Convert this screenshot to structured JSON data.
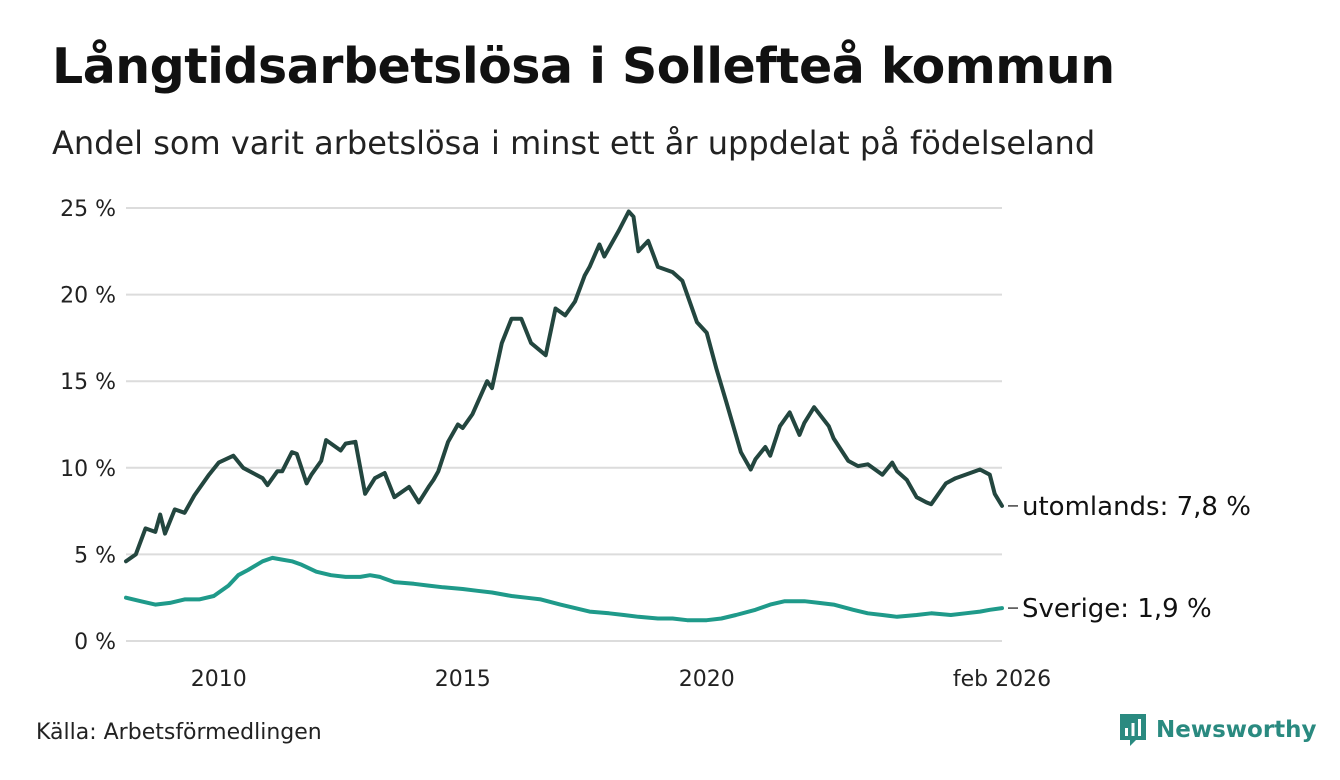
{
  "title": "Långtidsarbetslösa i Sollefteå kommun",
  "subtitle": "Andel som varit arbetslösa i minst ett år uppdelat på födelseland",
  "source": "Källa: Arbetsförmedlingen",
  "brand": "Newsworthy",
  "colors": {
    "utomlands": "#23463f",
    "sverige": "#1f9a8a",
    "grid": "#dcdcdc",
    "brand": "#2a8a80"
  },
  "chart_data": {
    "type": "line",
    "title": "Långtidsarbetslösa i Sollefteå kommun",
    "xlabel": "",
    "ylabel": "",
    "ylim": [
      0,
      25
    ],
    "xlim": [
      2008.1,
      2026.05
    ],
    "y_ticks": [
      0,
      5,
      10,
      15,
      20,
      25
    ],
    "y_tick_labels": [
      "0 %",
      "5 %",
      "10 %",
      "15 %",
      "20 %",
      "25 %"
    ],
    "x_ticks": [
      2010,
      2015,
      2020,
      2026.05
    ],
    "x_tick_labels": [
      "2010",
      "2015",
      "2020",
      "feb 2026"
    ],
    "series": [
      {
        "name": "utomlands",
        "end_label": "utomlands: 7,8 %",
        "x": [
          2008.1,
          2008.3,
          2008.5,
          2008.7,
          2008.8,
          2008.9,
          2009.1,
          2009.3,
          2009.5,
          2009.8,
          2010.0,
          2010.3,
          2010.5,
          2010.9,
          2011.0,
          2011.2,
          2011.3,
          2011.5,
          2011.6,
          2011.8,
          2011.9,
          2012.1,
          2012.2,
          2012.5,
          2012.6,
          2012.8,
          2013.0,
          2013.2,
          2013.4,
          2013.6,
          2013.9,
          2014.1,
          2014.3,
          2014.4,
          2014.5,
          2014.7,
          2014.9,
          2015.0,
          2015.2,
          2015.5,
          2015.6,
          2015.8,
          2016.0,
          2016.2,
          2016.4,
          2016.7,
          2016.9,
          2017.1,
          2017.3,
          2017.5,
          2017.6,
          2017.8,
          2017.9,
          2018.2,
          2018.4,
          2018.5,
          2018.6,
          2018.8,
          2019.0,
          2019.3,
          2019.5,
          2019.8,
          2020.0,
          2020.2,
          2020.4,
          2020.7,
          2020.9,
          2021.0,
          2021.2,
          2021.3,
          2021.5,
          2021.7,
          2021.9,
          2022.0,
          2022.2,
          2022.5,
          2022.6,
          2022.9,
          2023.1,
          2023.3,
          2023.6,
          2023.8,
          2023.9,
          2024.1,
          2024.3,
          2024.5,
          2024.6,
          2024.9,
          2025.1,
          2025.4,
          2025.6,
          2025.8,
          2025.9,
          2026.05
        ],
        "values": [
          4.6,
          5.0,
          6.5,
          6.3,
          7.3,
          6.2,
          7.6,
          7.4,
          8.4,
          9.6,
          10.3,
          10.7,
          10.0,
          9.4,
          9.0,
          9.8,
          9.8,
          10.9,
          10.8,
          9.1,
          9.6,
          10.4,
          11.6,
          11.0,
          11.4,
          11.5,
          8.5,
          9.4,
          9.7,
          8.3,
          8.9,
          8.0,
          8.9,
          9.3,
          9.8,
          11.5,
          12.5,
          12.3,
          13.1,
          15.0,
          14.6,
          17.2,
          18.6,
          18.6,
          17.2,
          16.5,
          19.2,
          18.8,
          19.6,
          21.1,
          21.6,
          22.9,
          22.2,
          23.7,
          24.8,
          24.5,
          22.5,
          23.1,
          21.6,
          21.3,
          20.8,
          18.4,
          17.8,
          15.7,
          13.8,
          10.9,
          9.9,
          10.5,
          11.2,
          10.7,
          12.4,
          13.2,
          11.9,
          12.6,
          13.5,
          12.4,
          11.7,
          10.4,
          10.1,
          10.2,
          9.6,
          10.3,
          9.8,
          9.3,
          8.3,
          8.0,
          7.9,
          9.1,
          9.4,
          9.7,
          9.9,
          9.6,
          8.5,
          7.8
        ]
      },
      {
        "name": "Sverige",
        "end_label": "Sverige: 1,9 %",
        "x": [
          2008.1,
          2008.4,
          2008.7,
          2009.0,
          2009.3,
          2009.6,
          2009.9,
          2010.2,
          2010.4,
          2010.6,
          2010.9,
          2011.1,
          2011.3,
          2011.5,
          2011.7,
          2012.0,
          2012.3,
          2012.6,
          2012.9,
          2013.1,
          2013.3,
          2013.6,
          2014.0,
          2014.3,
          2014.6,
          2015.0,
          2015.3,
          2015.6,
          2016.0,
          2016.3,
          2016.6,
          2017.0,
          2017.3,
          2017.6,
          2018.0,
          2018.3,
          2018.6,
          2019.0,
          2019.3,
          2019.6,
          2020.0,
          2020.3,
          2020.6,
          2021.0,
          2021.3,
          2021.6,
          2022.0,
          2022.3,
          2022.6,
          2023.0,
          2023.3,
          2023.6,
          2023.9,
          2024.3,
          2024.6,
          2025.0,
          2025.3,
          2025.6,
          2025.8,
          2026.05
        ],
        "values": [
          2.5,
          2.3,
          2.1,
          2.2,
          2.4,
          2.4,
          2.6,
          3.2,
          3.8,
          4.1,
          4.6,
          4.8,
          4.7,
          4.6,
          4.4,
          4.0,
          3.8,
          3.7,
          3.7,
          3.8,
          3.7,
          3.4,
          3.3,
          3.2,
          3.1,
          3.0,
          2.9,
          2.8,
          2.6,
          2.5,
          2.4,
          2.1,
          1.9,
          1.7,
          1.6,
          1.5,
          1.4,
          1.3,
          1.3,
          1.2,
          1.2,
          1.3,
          1.5,
          1.8,
          2.1,
          2.3,
          2.3,
          2.2,
          2.1,
          1.8,
          1.6,
          1.5,
          1.4,
          1.5,
          1.6,
          1.5,
          1.6,
          1.7,
          1.8,
          1.9
        ]
      }
    ]
  }
}
